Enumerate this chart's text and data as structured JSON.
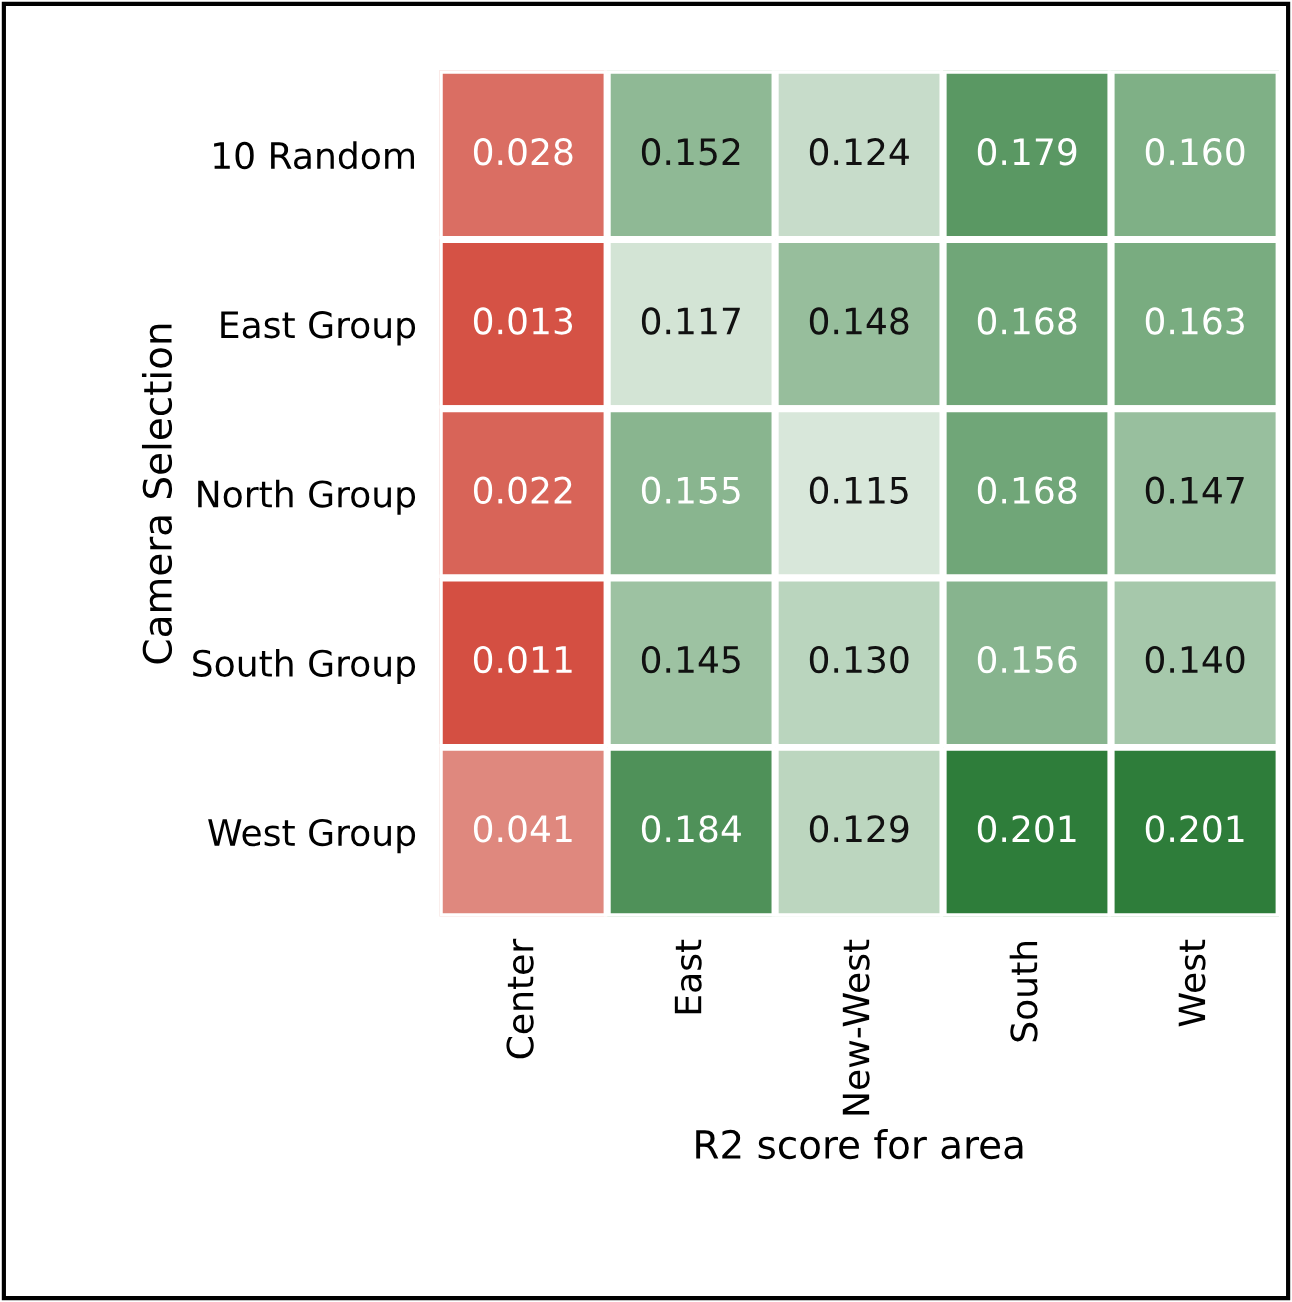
{
  "chart_data": {
    "type": "heatmap",
    "xlabel": "R2 score for area",
    "ylabel": "Camera Selection",
    "categories": [
      "Center",
      "East",
      "New-West",
      "South",
      "West"
    ],
    "y_categories": [
      "10 Random",
      "East Group",
      "North Group",
      "South Group",
      "West Group"
    ],
    "cells": [
      [
        0.028,
        0.152,
        0.124,
        0.179,
        0.16
      ],
      [
        0.013,
        0.117,
        0.148,
        0.168,
        0.163
      ],
      [
        0.022,
        0.155,
        0.115,
        0.168,
        0.147
      ],
      [
        0.011,
        0.145,
        0.13,
        0.156,
        0.14
      ],
      [
        0.041,
        0.184,
        0.129,
        0.201,
        0.201
      ]
    ],
    "cell_labels": [
      [
        "0.028",
        "0.152",
        "0.124",
        "0.179",
        "0.160"
      ],
      [
        "0.013",
        "0.117",
        "0.148",
        "0.168",
        "0.163"
      ],
      [
        "0.022",
        "0.155",
        "0.115",
        "0.168",
        "0.147"
      ],
      [
        "0.011",
        "0.145",
        "0.130",
        "0.156",
        "0.140"
      ],
      [
        "0.041",
        "0.184",
        "0.129",
        "0.201",
        "0.201"
      ]
    ]
  }
}
